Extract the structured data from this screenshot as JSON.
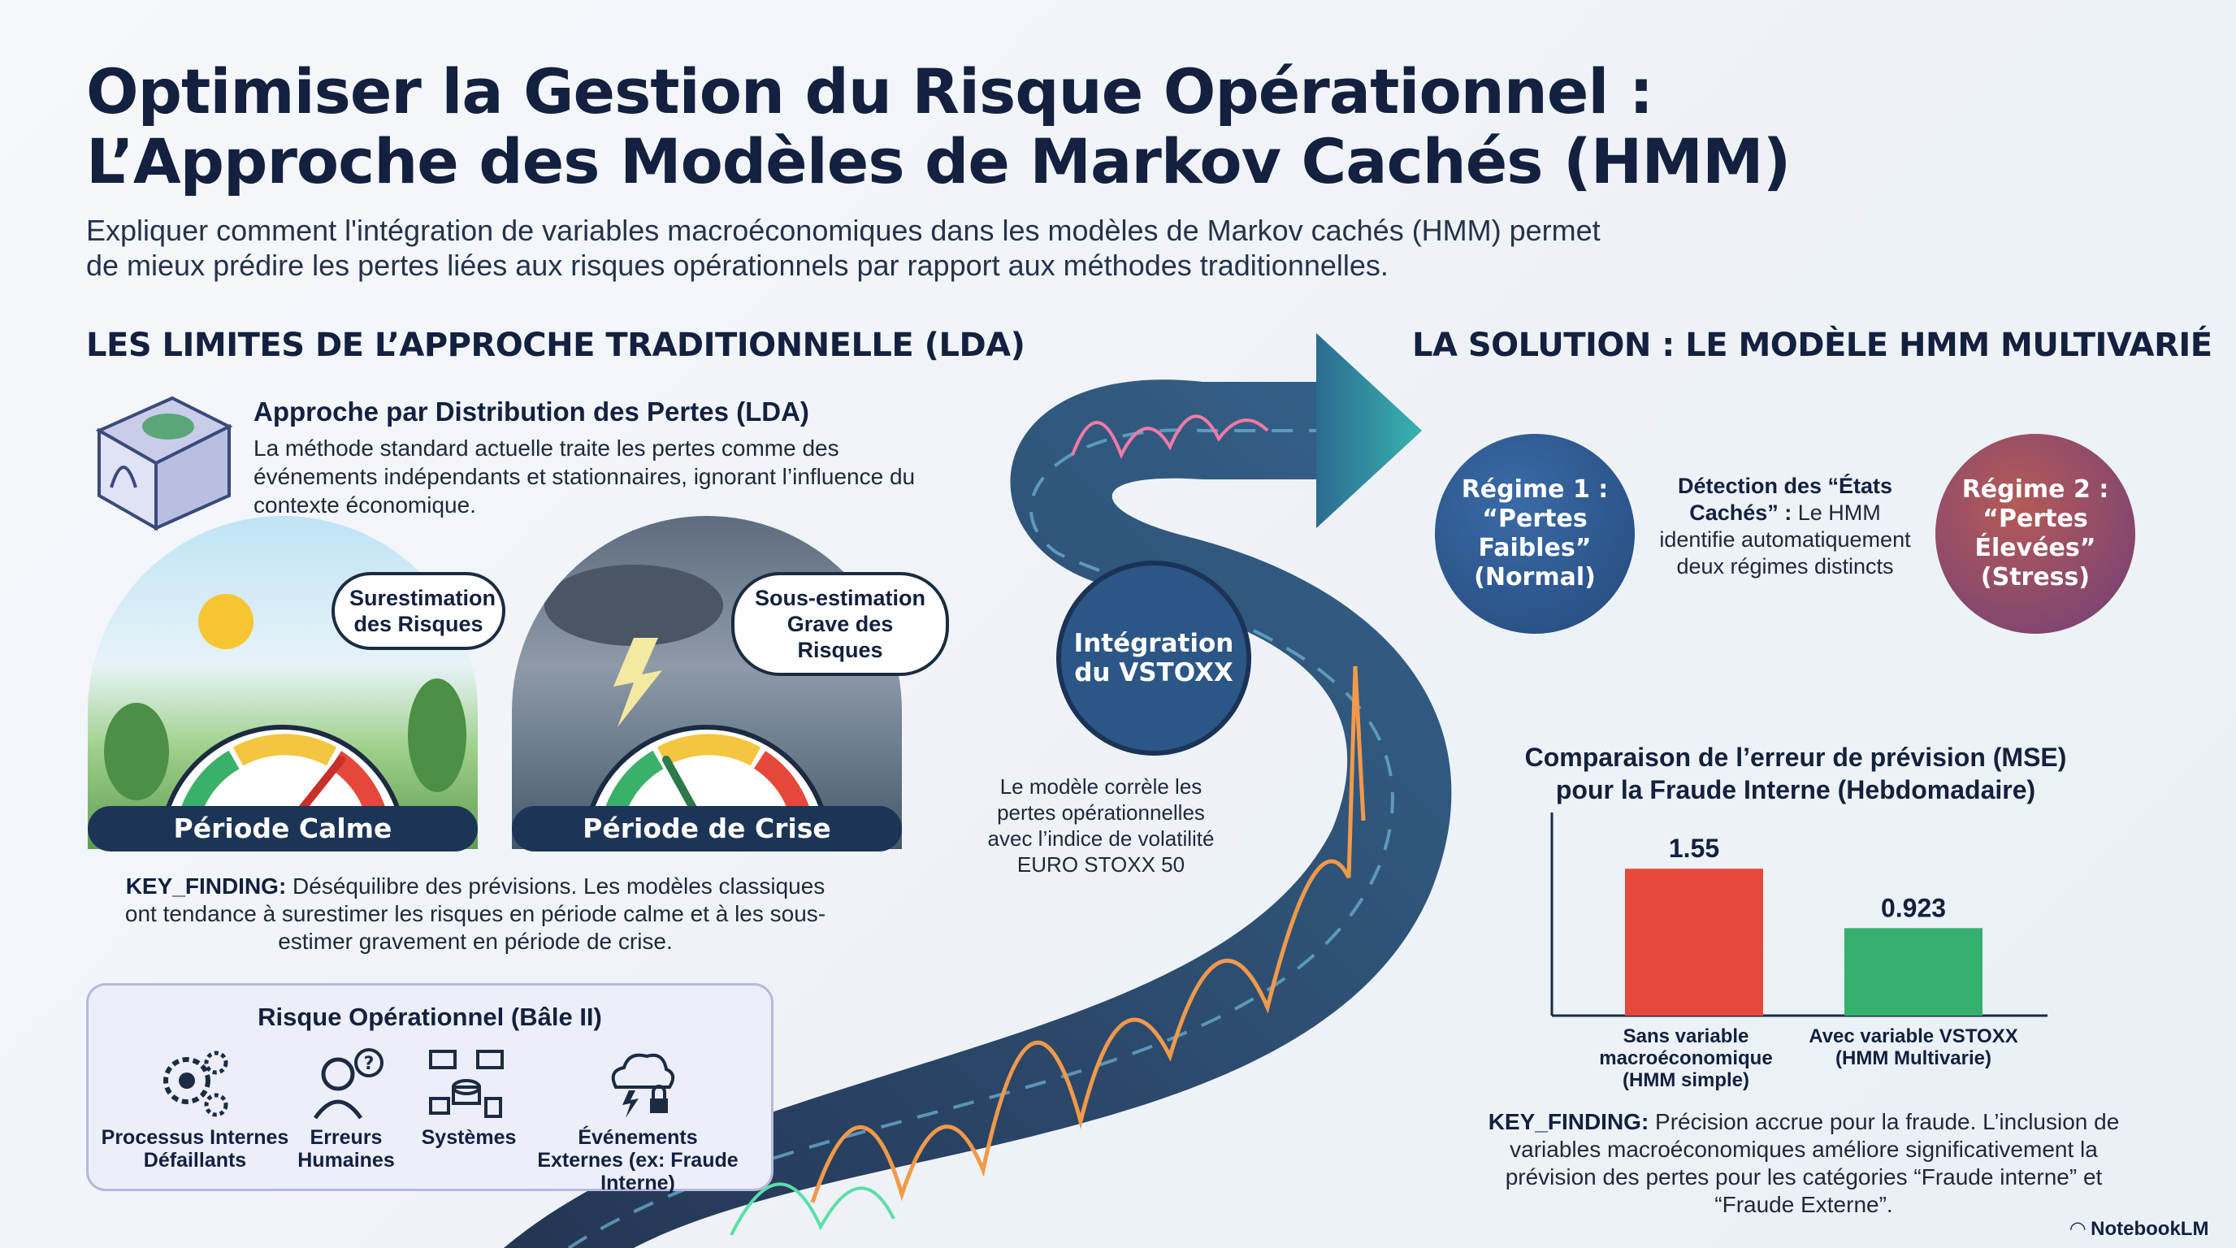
{
  "header": {
    "title_line1": "Optimiser la Gestion du Risque Opérationnel :",
    "title_line2": "L’Approche des Modèles de Markov Cachés (HMM)",
    "subtitle_line1": "Expliquer comment l'intégration de variables macroéconomiques dans les modèles de Markov cachés (HMM) permet",
    "subtitle_line2": "de mieux prédire les pertes liées aux risques opérationnels par rapport aux méthodes traditionnelles."
  },
  "left": {
    "heading": "LES LIMITES DE L’APPROCHE TRADITIONNELLE (LDA)",
    "lda_title": "Approche par Distribution des Pertes (LDA)",
    "lda_text": "La méthode standard actuelle traite les pertes comme des événements indépendants et stationnaires, ignorant l’influence du contexte économique.",
    "calm_bubble": "Surestimation des Risques",
    "crisis_bubble": "Sous-estimation Grave des Risques",
    "calm_label": "Période Calme",
    "crisis_label": "Période de Crise",
    "finding_key": "KEY_FINDING:",
    "finding_text": " Déséquilibre des prévisions. Les modèles classiques ont tendance à surestimer les risques en période calme et à les sous-estimer gravement en période de crise.",
    "risk_title": "Risque Opérationnel (Bâle II)",
    "risk_items": [
      {
        "label": "Processus Internes Défaillants",
        "icon": "gears-icon"
      },
      {
        "label": "Erreurs Humaines",
        "icon": "person-question-icon"
      },
      {
        "label": "Systèmes",
        "icon": "network-systems-icon"
      },
      {
        "label": "Événements Externes (ex: Fraude Interne)",
        "icon": "cloud-lightning-lock-icon"
      }
    ]
  },
  "middle": {
    "integration": "Intégration du VSTOXX",
    "note": "Le modèle corrèle les pertes opérationnelles avec l’indice de volatilité EURO STOXX 50"
  },
  "right": {
    "heading": "LA SOLUTION : LE MODÈLE HMM MULTIVARIÉ",
    "regime1": "Régime 1 : “Pertes Faibles” (Normal)",
    "regime2": "Régime 2 : “Pertes Élevées” (Stress)",
    "detection_bold": "Détection des “États Cachés” :",
    "detection_text": " Le HMM identifie automatiquement deux régimes distincts",
    "finding_key": "KEY_FINDING:",
    "finding_text": " Précision accrue pour la fraude. L’inclusion de variables macroéconomiques améliore significativement la prévision des pertes pour les catégories “Fraude interne” et “Fraude Externe”."
  },
  "chart_data": {
    "type": "bar",
    "title": "Comparaison de l’erreur de prévision (MSE) pour la Fraude Interne (Hebdomadaire)",
    "categories": [
      "Sans variable macroéconomique (HMM simple)",
      "Avec variable VSTOXX (HMM Multivarie)"
    ],
    "values": [
      1.55,
      0.923
    ],
    "value_labels": [
      "1.55",
      "0.923"
    ],
    "colors": [
      "#e8493d",
      "#35b06f"
    ],
    "ylim": [
      0,
      1.8
    ],
    "grid": false
  },
  "colors": {
    "navy": "#13203f",
    "regime1": "#2c5a93",
    "regime2": "#8a4c6f",
    "road": "#1e3a5f"
  },
  "footer": {
    "brand": "NotebookLM"
  }
}
